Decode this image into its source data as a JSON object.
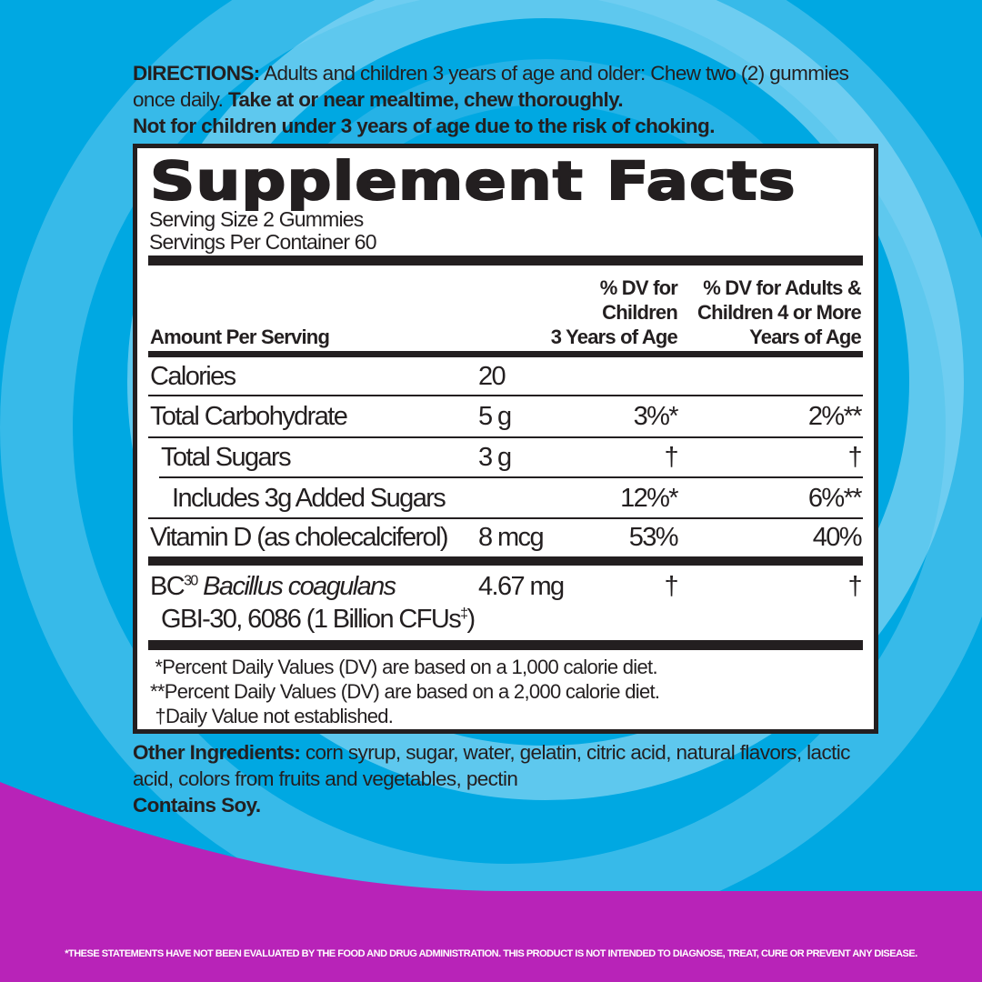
{
  "colors": {
    "background_blue": "#00a8e2",
    "magenta": "#b823b8",
    "ink": "#231f20"
  },
  "directions": {
    "label": "DIRECTIONS:",
    "text": " Adults and children 3 years of age and older: Chew two (2) gummies once daily. ",
    "bold1": "Take at or near mealtime, chew thoroughly.",
    "bold2": "Not for children under 3 years of age due to the risk of choking."
  },
  "facts": {
    "title": "Supplement Facts",
    "serving_size": "Serving Size 2 Gummies",
    "servings_per_container": "Servings Per Container 60",
    "header": {
      "amount": "Amount Per Serving",
      "children": [
        "% DV for",
        "Children",
        "3 Years of Age"
      ],
      "adults": [
        "% DV for Adults &",
        "Children 4 or More",
        "Years of Age"
      ]
    },
    "rows": [
      {
        "name": "Calories",
        "amount": "20",
        "dv_children": "",
        "dv_adults": ""
      },
      {
        "name": "Total Carbohydrate",
        "amount": "5 g",
        "dv_children": "3%*",
        "dv_adults": "2%**"
      },
      {
        "name": "Total Sugars",
        "amount": "3 g",
        "dv_children": "†",
        "dv_adults": "†"
      },
      {
        "name": "Includes 3g Added Sugars",
        "amount": "",
        "dv_children": "12%*",
        "dv_adults": "6%**"
      },
      {
        "name": "Vitamin D (as cholecalciferol)",
        "amount": "8 mcg",
        "dv_children": "53%",
        "dv_adults": "40%"
      }
    ],
    "probiotic": {
      "prefix": "BC",
      "sup": "30",
      "species": "Bacillus coagulans",
      "strain": "GBI-30, 6086 (1 Billion CFUs",
      "strain_sup": "‡",
      "strain_end": ")",
      "amount": "4.67 mg",
      "dv_children": "†",
      "dv_adults": "†"
    },
    "footnotes": [
      " *Percent Daily Values (DV) are based on a 1,000 calorie diet.",
      "**Percent Daily Values (DV) are based on a 2,000 calorie diet.",
      " †Daily Value not established."
    ]
  },
  "other": {
    "label": "Other Ingredients:",
    "text": " corn syrup, sugar, water, gelatin, citric acid, natural flavors, lactic acid, colors from fruits and vegetables, pectin",
    "contains": "Contains Soy."
  },
  "disclaimer": "*THESE STATEMENTS HAVE NOT BEEN EVALUATED BY THE FOOD AND DRUG ADMINISTRATION. THIS PRODUCT IS NOT INTENDED TO DIAGNOSE, TREAT, CURE OR PREVENT ANY DISEASE."
}
